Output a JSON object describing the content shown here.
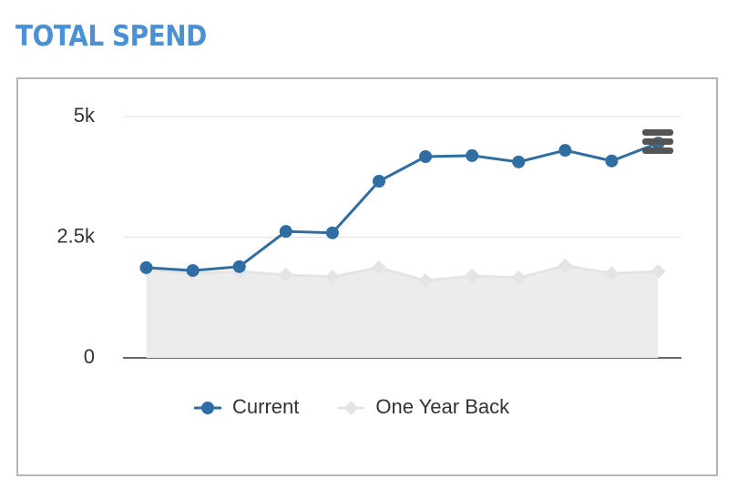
{
  "chart_data": {
    "type": "line",
    "title": "TOTAL SPEND",
    "categories": [
      null,
      null,
      null,
      null,
      null,
      null,
      null,
      null,
      null,
      null,
      null,
      null
    ],
    "series": [
      {
        "name": "Current",
        "color": "#2f6da3",
        "marker": "circle",
        "values": [
          1870,
          1810,
          1890,
          2620,
          2590,
          3660,
          4170,
          4190,
          4060,
          4300,
          4080,
          4450
        ]
      },
      {
        "name": "One Year Back",
        "color": "#e4e4e4",
        "marker": "diamond",
        "area": true,
        "values": [
          1830,
          1750,
          1790,
          1720,
          1680,
          1870,
          1600,
          1700,
          1660,
          1910,
          1750,
          1790
        ]
      }
    ],
    "ylim": [
      0,
      5000
    ],
    "yticks": [
      0,
      {
        "value": 2500,
        "label": "2.5k"
      },
      {
        "value": 5000,
        "label": "5k"
      }
    ],
    "grid": true,
    "legend": "bottom"
  }
}
